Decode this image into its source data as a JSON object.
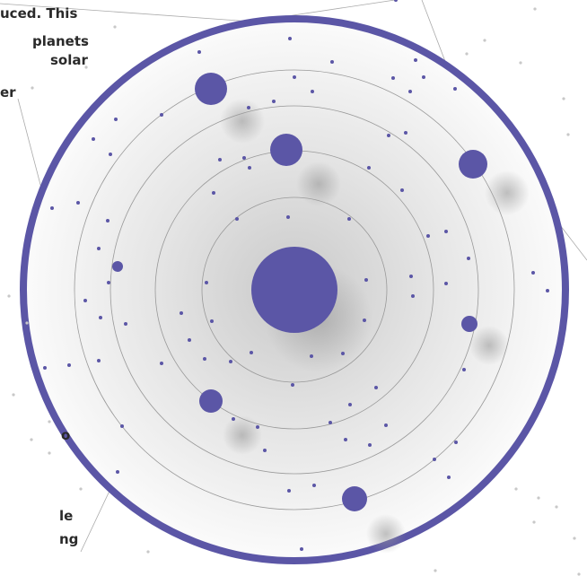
{
  "text_fragments": [
    "uced. This",
    "planets",
    "solar",
    "er",
    "o",
    "le",
    "ng"
  ]
}
